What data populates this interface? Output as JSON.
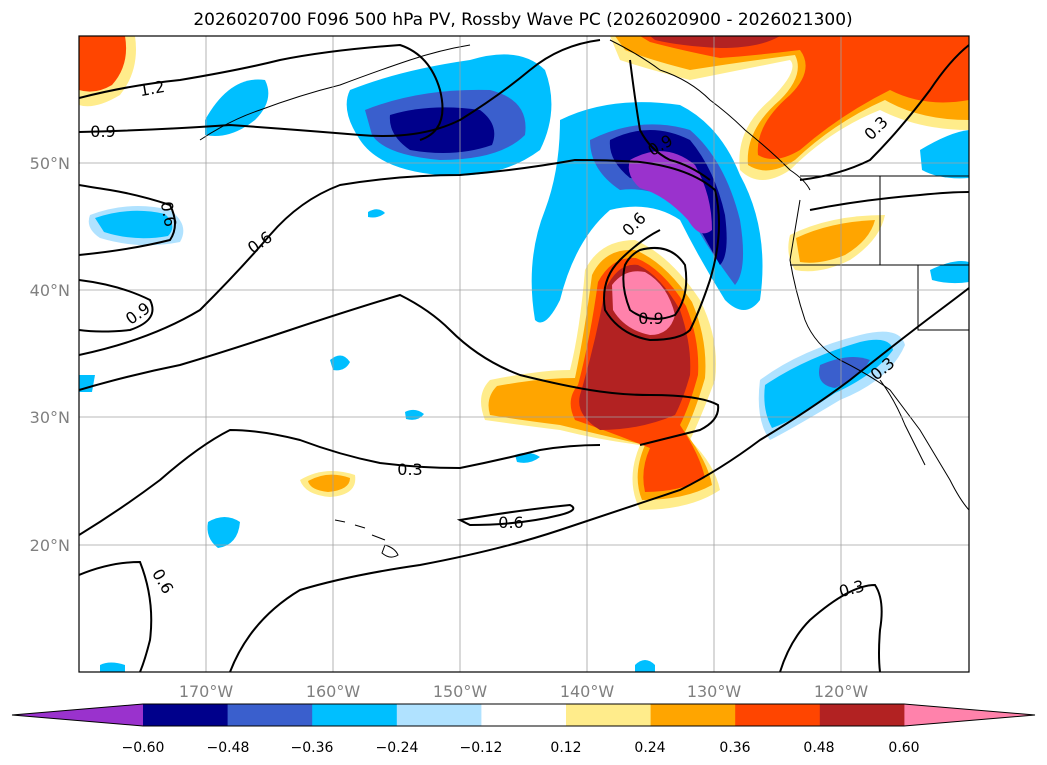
{
  "title": "2026020700 F096 500 hPa PV, Rossby Wave PC (2026020900 - 2026021300)",
  "gridlines": {
    "lon_labels": [
      "170°W",
      "160°W",
      "150°W",
      "140°W",
      "130°W",
      "120°W"
    ],
    "lat_labels": [
      "50°N",
      "40°N",
      "30°N",
      "20°N"
    ]
  },
  "contour_labels": [
    "1.2",
    "0.9",
    "0.6",
    "0.9",
    "0.6",
    "0.9",
    "0.3",
    "0.6",
    "0.6",
    "0.9",
    "0.3",
    "0.3",
    "0.3",
    "0.6"
  ],
  "colorbar": {
    "ticks": [
      "−0.60",
      "−0.48",
      "−0.36",
      "−0.24",
      "−0.12",
      "0.12",
      "0.24",
      "0.36",
      "0.48",
      "0.60"
    ],
    "colors": [
      "#9a32cd",
      "#00008b",
      "#3a5fcd",
      "#00bfff",
      "#b0e2ff",
      "#ffffff",
      "#ffec8b",
      "#ffa500",
      "#ff4500",
      "#b22222",
      "#ff82ab"
    ]
  }
}
